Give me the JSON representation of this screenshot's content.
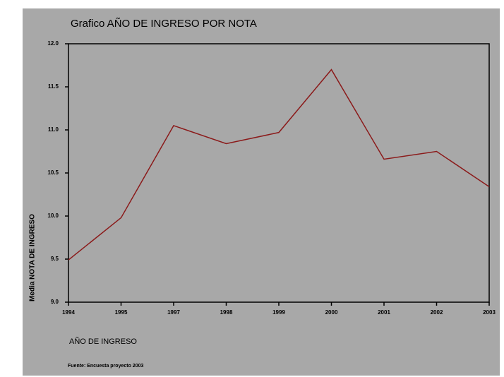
{
  "chart_data": {
    "type": "line",
    "title": "Grafico AÑO DE INGRESO POR NOTA",
    "x_label": "AÑO DE INGRESO",
    "y_label": "Media NOTA DE INGRESO",
    "source": "Fuente: Encuesta proyecto 2003",
    "categories": [
      "1994",
      "1995",
      "1997",
      "1998",
      "1999",
      "2000",
      "2001",
      "2002",
      "2003"
    ],
    "series": [
      {
        "name": "Media NOTA DE INGRESO",
        "color": "#8b1a1a",
        "values": [
          9.49,
          9.98,
          11.05,
          10.84,
          10.97,
          11.7,
          10.66,
          10.75,
          10.34
        ]
      }
    ],
    "ylim": [
      9,
      12
    ],
    "yticks": [
      {
        "value": 9,
        "label": "9.0"
      },
      9.5,
      {
        "value": 10,
        "label": "10.0"
      },
      10.5,
      {
        "value": 11,
        "label": "11.0"
      },
      11.5,
      {
        "value": 12,
        "label": "12.0"
      }
    ]
  }
}
